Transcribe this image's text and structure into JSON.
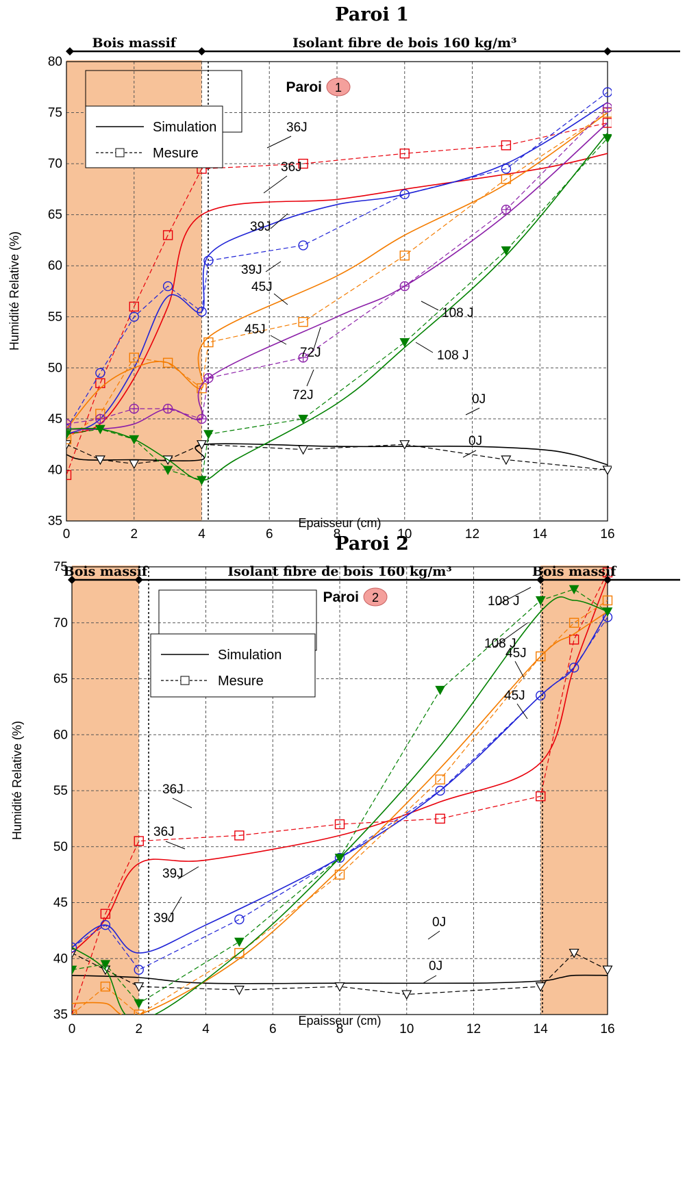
{
  "colors": {
    "zone_fill": "#F7C299",
    "grid": "#555555",
    "d0": "#000000",
    "d36": "#E8000B",
    "d39": "#1F23D6",
    "d45": "#F47C00",
    "d72": "#8B1FA8",
    "d108": "#008000",
    "badge": "#F4A09C"
  },
  "chart_data": [
    {
      "type": "line",
      "title": "Paroi 1",
      "badge": "1",
      "title_inner": "Paroi",
      "zones": [
        {
          "label": "Bois massif",
          "from": 0,
          "to": 4,
          "shaded": true
        },
        {
          "label": "Isolant fibre de bois 160 kg/m³",
          "from": 4,
          "to": 16,
          "shaded": false
        }
      ],
      "xlabel": "Epaisseur (cm)",
      "ylabel": "Humidité Relative  (%)",
      "xlim": [
        0,
        16
      ],
      "ylim": [
        35,
        80
      ],
      "xticks": [
        0,
        2,
        4,
        6,
        8,
        10,
        12,
        14,
        16
      ],
      "yticks": [
        35,
        40,
        45,
        50,
        55,
        60,
        65,
        70,
        75,
        80
      ],
      "grid": true,
      "legend": {
        "position": "top-left",
        "entries": [
          "Simulation",
          "Mesure"
        ]
      },
      "series": [
        {
          "name": "0J",
          "color_key": "d0",
          "marker": "triangle-down-open",
          "sim": [
            [
              0,
              41.5
            ],
            [
              0.5,
              41
            ],
            [
              2,
              41
            ],
            [
              4,
              41
            ],
            [
              4.05,
              42.5
            ],
            [
              8,
              42.3
            ],
            [
              10,
              42.3
            ],
            [
              12,
              42.3
            ],
            [
              14,
              42
            ],
            [
              15,
              41.5
            ],
            [
              16,
              40.5
            ]
          ],
          "mes": [
            [
              0,
              42.5
            ],
            [
              1,
              41
            ],
            [
              2,
              40.6
            ],
            [
              3,
              41
            ],
            [
              4,
              42.5
            ],
            [
              7,
              42
            ],
            [
              10,
              42.5
            ],
            [
              13,
              41
            ],
            [
              16,
              40
            ]
          ]
        },
        {
          "name": "36J",
          "color_key": "d36",
          "marker": "square-open",
          "sim": [
            [
              0,
              43.5
            ],
            [
              1,
              44.5
            ],
            [
              2,
              49
            ],
            [
              3,
              56
            ],
            [
              4,
              65
            ],
            [
              8,
              66.5
            ],
            [
              10,
              67.5
            ],
            [
              14,
              69.5
            ],
            [
              16,
              71
            ]
          ],
          "mes": [
            [
              0,
              39.5
            ],
            [
              1,
              48.5
            ],
            [
              2,
              56
            ],
            [
              3,
              63
            ],
            [
              4,
              69.5
            ],
            [
              7,
              70
            ],
            [
              10,
              71
            ],
            [
              13,
              71.8
            ],
            [
              16,
              74
            ]
          ]
        },
        {
          "name": "39J",
          "color_key": "d39",
          "marker": "circle-open",
          "sim": [
            [
              0,
              43.5
            ],
            [
              1,
              45
            ],
            [
              2,
              50
            ],
            [
              3,
              57
            ],
            [
              4,
              55.5
            ],
            [
              4.2,
              61
            ],
            [
              6,
              64
            ],
            [
              8,
              66
            ],
            [
              10,
              67
            ],
            [
              13,
              70
            ],
            [
              16,
              76
            ]
          ],
          "mes": [
            [
              0,
              44
            ],
            [
              1,
              49.5
            ],
            [
              2,
              55
            ],
            [
              3,
              58
            ],
            [
              4,
              55.5
            ],
            [
              4.2,
              60.5
            ],
            [
              7,
              62
            ],
            [
              10,
              67
            ],
            [
              13,
              69.5
            ],
            [
              16,
              77
            ]
          ]
        },
        {
          "name": "45J",
          "color_key": "d45",
          "marker": "square-open",
          "sim": [
            [
              0,
              44
            ],
            [
              1,
              48
            ],
            [
              2,
              50
            ],
            [
              3,
              50.5
            ],
            [
              4,
              48
            ],
            [
              4.2,
              53
            ],
            [
              8,
              59
            ],
            [
              10,
              63
            ],
            [
              13,
              68
            ],
            [
              16,
              75
            ]
          ],
          "mes": [
            [
              0,
              43
            ],
            [
              1,
              45.5
            ],
            [
              2,
              51
            ],
            [
              3,
              50.5
            ],
            [
              4,
              48
            ],
            [
              4.2,
              52.5
            ],
            [
              7,
              54.5
            ],
            [
              10,
              61
            ],
            [
              13,
              68.5
            ],
            [
              16,
              75
            ]
          ]
        },
        {
          "name": "72J",
          "color_key": "d72",
          "marker": "circle-cross",
          "sim": [
            [
              0,
              44
            ],
            [
              1,
              44
            ],
            [
              2,
              44.5
            ],
            [
              3,
              46
            ],
            [
              4,
              45
            ],
            [
              4.2,
              49
            ],
            [
              8,
              55
            ],
            [
              10,
              58
            ],
            [
              13,
              65
            ],
            [
              16,
              74
            ]
          ],
          "mes": [
            [
              0,
              44.5
            ],
            [
              1,
              45
            ],
            [
              2,
              46
            ],
            [
              3,
              46
            ],
            [
              4,
              45
            ],
            [
              4.2,
              49
            ],
            [
              7,
              51
            ],
            [
              10,
              58
            ],
            [
              13,
              65.5
            ],
            [
              16,
              75.5
            ]
          ]
        },
        {
          "name": "108 J",
          "color_key": "d108",
          "marker": "triangle-down-filled",
          "sim": [
            [
              0,
              44
            ],
            [
              1,
              44
            ],
            [
              2,
              43
            ],
            [
              3,
              41
            ],
            [
              4,
              39
            ],
            [
              5,
              41
            ],
            [
              8,
              46.5
            ],
            [
              10,
              52
            ],
            [
              13,
              61
            ],
            [
              16,
              73
            ]
          ],
          "mes": [
            [
              0,
              43.5
            ],
            [
              1,
              44
            ],
            [
              2,
              43
            ],
            [
              3,
              40
            ],
            [
              4,
              39
            ],
            [
              4.2,
              43.5
            ],
            [
              7,
              45
            ],
            [
              10,
              52.5
            ],
            [
              13,
              61.5
            ],
            [
              16,
              72.5
            ]
          ]
        }
      ]
    },
    {
      "type": "line",
      "title": "Paroi 2",
      "badge": "2",
      "title_inner": "Paroi",
      "zones": [
        {
          "label": "Bois massif",
          "from": 0,
          "to": 2,
          "shaded": true
        },
        {
          "label": "Isolant fibre de bois 160 kg/m³",
          "from": 2,
          "to": 14,
          "shaded": false
        },
        {
          "label": "Bois massif",
          "from": 14,
          "to": 16,
          "shaded": true
        }
      ],
      "xlabel": "Epaisseur (cm)",
      "ylabel": "Humidité Relative  (%)",
      "xlim": [
        0,
        16
      ],
      "ylim": [
        35,
        75
      ],
      "xticks": [
        0,
        2,
        4,
        6,
        8,
        10,
        12,
        14,
        16
      ],
      "yticks": [
        35,
        40,
        45,
        50,
        55,
        60,
        65,
        70,
        75
      ],
      "grid": true,
      "legend": {
        "position": "top-left",
        "entries": [
          "Simulation",
          "Mesure"
        ]
      },
      "series": [
        {
          "name": "0J",
          "color_key": "d0",
          "marker": "triangle-down-open",
          "sim": [
            [
              0,
              38.5
            ],
            [
              2,
              38.3
            ],
            [
              4,
              37.8
            ],
            [
              8,
              37.8
            ],
            [
              12,
              37.8
            ],
            [
              14,
              38
            ],
            [
              14.6,
              38.3
            ],
            [
              15,
              38.5
            ],
            [
              16,
              38.5
            ]
          ],
          "mes": [
            [
              0,
              40.5
            ],
            [
              1,
              39
            ],
            [
              2,
              37.5
            ],
            [
              5,
              37.2
            ],
            [
              8,
              37.5
            ],
            [
              10,
              36.8
            ],
            [
              14,
              37.5
            ],
            [
              15,
              40.5
            ],
            [
              16,
              39
            ]
          ]
        },
        {
          "name": "36J",
          "color_key": "d36",
          "marker": "square-open",
          "sim": [
            [
              0,
              40.5
            ],
            [
              1,
              43.5
            ],
            [
              2,
              48.5
            ],
            [
              4,
              48.8
            ],
            [
              8,
              51
            ],
            [
              11,
              54
            ],
            [
              14,
              57.5
            ],
            [
              15,
              66
            ],
            [
              16,
              74
            ]
          ],
          "mes": [
            [
              0,
              35
            ],
            [
              1,
              44
            ],
            [
              2,
              50.5
            ],
            [
              5,
              51
            ],
            [
              8,
              52
            ],
            [
              11,
              52.5
            ],
            [
              14,
              54.5
            ],
            [
              15,
              68.5
            ],
            [
              16,
              74.5
            ]
          ]
        },
        {
          "name": "39J",
          "color_key": "d39",
          "marker": "circle-open",
          "sim": [
            [
              0,
              41
            ],
            [
              1,
              43
            ],
            [
              2,
              40.5
            ],
            [
              4,
              43
            ],
            [
              8,
              49
            ],
            [
              11,
              55
            ],
            [
              14,
              63.5
            ],
            [
              15,
              66
            ],
            [
              16,
              71
            ]
          ],
          "mes": [
            [
              0,
              41
            ],
            [
              1,
              43
            ],
            [
              2,
              39
            ],
            [
              5,
              43.5
            ],
            [
              8,
              49
            ],
            [
              11,
              55
            ],
            [
              14,
              63.5
            ],
            [
              15,
              66
            ],
            [
              16,
              70.5
            ]
          ]
        },
        {
          "name": "45J",
          "color_key": "d45",
          "marker": "square-open",
          "sim": [
            [
              0,
              36
            ],
            [
              1,
              36
            ],
            [
              2,
              35
            ],
            [
              5,
              40
            ],
            [
              8,
              48
            ],
            [
              11,
              57
            ],
            [
              14,
              67
            ],
            [
              15,
              69
            ],
            [
              16,
              71
            ]
          ],
          "mes": [
            [
              0,
              35
            ],
            [
              1,
              37.5
            ],
            [
              2,
              35
            ],
            [
              5,
              40.5
            ],
            [
              8,
              47.5
            ],
            [
              11,
              56
            ],
            [
              14,
              67
            ],
            [
              15,
              70
            ],
            [
              16,
              72
            ]
          ]
        },
        {
          "name": "108 J",
          "color_key": "d108",
          "marker": "triangle-down-filled",
          "sim": [
            [
              0,
              41
            ],
            [
              1,
              39
            ],
            [
              2,
              34.5
            ],
            [
              5,
              40.5
            ],
            [
              8,
              49
            ],
            [
              11,
              59
            ],
            [
              14,
              71
            ],
            [
              15,
              72
            ],
            [
              16,
              71
            ]
          ],
          "mes": [
            [
              0,
              39
            ],
            [
              1,
              39.5
            ],
            [
              2,
              36
            ],
            [
              5,
              41.5
            ],
            [
              8,
              49
            ],
            [
              11,
              64
            ],
            [
              14,
              72
            ],
            [
              15,
              73
            ],
            [
              16,
              71
            ]
          ]
        }
      ]
    }
  ]
}
